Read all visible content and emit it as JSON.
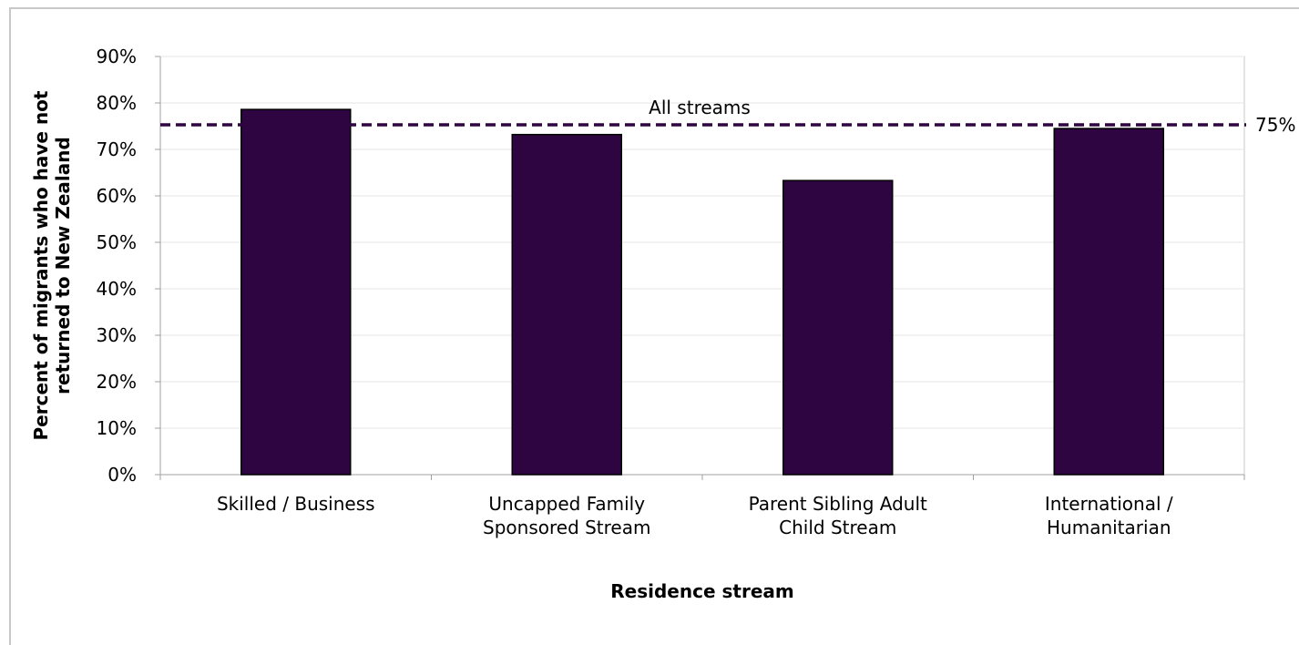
{
  "chart_data": {
    "type": "bar",
    "categories": [
      [
        "Skilled / Business"
      ],
      [
        "Uncapped Family",
        "Sponsored Stream"
      ],
      [
        "Parent Sibling Adult",
        "Child Stream"
      ],
      [
        "International /",
        "Humanitarian"
      ]
    ],
    "values": [
      78.6,
      73.2,
      63.3,
      74.5
    ],
    "xlabel": "Residence stream",
    "ylabel": [
      "Percent of migrants who have not",
      "returned to New Zealand"
    ],
    "ylim": [
      0,
      90
    ],
    "yticks": [
      0,
      10,
      20,
      30,
      40,
      50,
      60,
      70,
      80,
      90
    ],
    "ytick_format": "%",
    "grid": true,
    "bar_color": "#2e0540",
    "reference_line": {
      "label": "All streams",
      "value": 75.3,
      "value_label": "75%",
      "color": "#2e0540",
      "style": "dashed"
    }
  }
}
